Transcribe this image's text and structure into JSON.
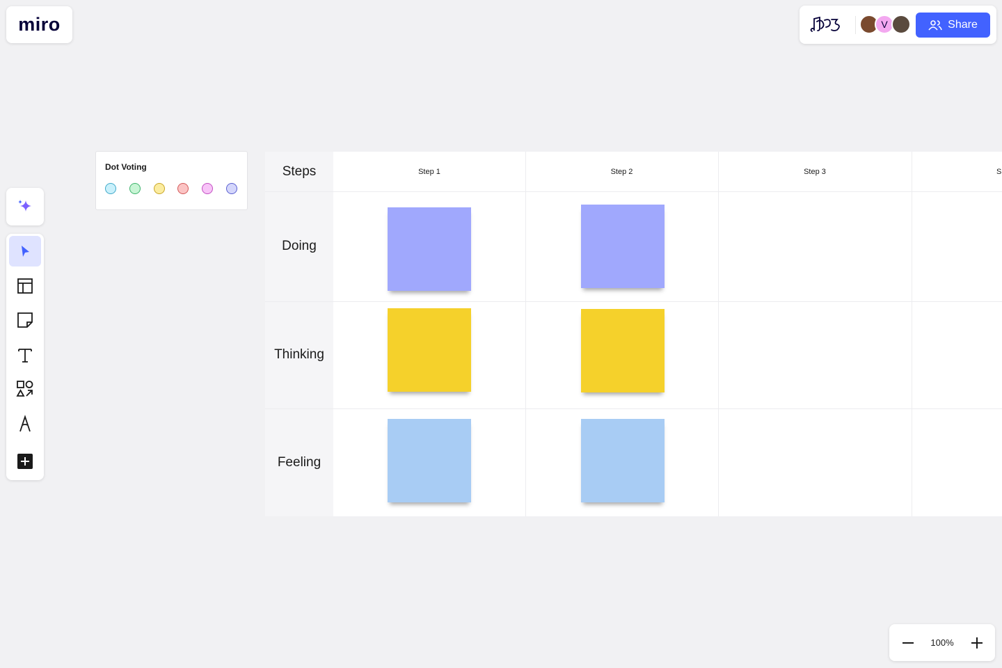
{
  "header": {
    "logo": "miro",
    "avatar_initial": "V",
    "share_button": "Share"
  },
  "dot_voting": {
    "title": "Dot Voting"
  },
  "table": {
    "corner": "Steps",
    "columns": [
      "Step 1",
      "Step 2",
      "Step 3",
      "S"
    ],
    "rows": [
      "Doing",
      "Thinking",
      "Feeling"
    ]
  },
  "zoom": {
    "level": "100%"
  }
}
